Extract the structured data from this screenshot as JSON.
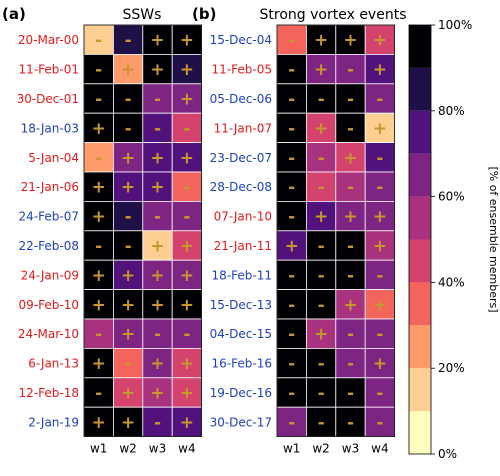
{
  "chart_data": [
    {
      "type": "heatmap",
      "panel_label": "(a)",
      "title": "SSWs",
      "columns": [
        "w1",
        "w2",
        "w3",
        "w4"
      ],
      "rows": [
        {
          "label": "20-Mar-00",
          "color": "red",
          "values": [
            10,
            80,
            100,
            100
          ],
          "signs": [
            "-",
            "-",
            "+",
            "+"
          ]
        },
        {
          "label": "11-Feb-01",
          "color": "red",
          "values": [
            100,
            25,
            100,
            80
          ],
          "signs": [
            "-",
            "+",
            "+",
            "+"
          ]
        },
        {
          "label": "30-Dec-01",
          "color": "red",
          "values": [
            100,
            100,
            65,
            65
          ],
          "signs": [
            "-",
            "-",
            "-",
            "+"
          ]
        },
        {
          "label": "18-Jan-03",
          "color": "blue",
          "values": [
            100,
            100,
            75,
            45
          ],
          "signs": [
            "+",
            "-",
            "-",
            "-"
          ]
        },
        {
          "label": "5-Jan-04",
          "color": "red",
          "values": [
            25,
            65,
            75,
            75
          ],
          "signs": [
            "-",
            "+",
            "+",
            "+"
          ]
        },
        {
          "label": "21-Jan-06",
          "color": "red",
          "values": [
            100,
            75,
            75,
            35
          ],
          "signs": [
            "+",
            "+",
            "+",
            "-"
          ]
        },
        {
          "label": "24-Feb-07",
          "color": "blue",
          "values": [
            100,
            85,
            65,
            65
          ],
          "signs": [
            "+",
            "-",
            "-",
            "-"
          ]
        },
        {
          "label": "22-Feb-08",
          "color": "blue",
          "values": [
            100,
            100,
            10,
            40
          ],
          "signs": [
            "-",
            "-",
            "+",
            "+"
          ]
        },
        {
          "label": "24-Jan-09",
          "color": "red",
          "values": [
            100,
            75,
            65,
            65
          ],
          "signs": [
            "+",
            "+",
            "+",
            "+"
          ]
        },
        {
          "label": "09-Feb-10",
          "color": "red",
          "values": [
            100,
            100,
            100,
            100
          ],
          "signs": [
            "+",
            "+",
            "+",
            "+"
          ]
        },
        {
          "label": "24-Mar-10",
          "color": "red",
          "values": [
            55,
            65,
            65,
            65
          ],
          "signs": [
            "-",
            "+",
            "-",
            "-"
          ]
        },
        {
          "label": "6-Jan-13",
          "color": "red",
          "values": [
            100,
            35,
            65,
            45
          ],
          "signs": [
            "+",
            "-",
            "+",
            "+"
          ]
        },
        {
          "label": "12-Feb-18",
          "color": "red",
          "values": [
            100,
            45,
            55,
            45
          ],
          "signs": [
            "-",
            "+",
            "+",
            "+"
          ]
        },
        {
          "label": "2-Jan-19",
          "color": "blue",
          "values": [
            100,
            100,
            75,
            75
          ],
          "signs": [
            "+",
            "+",
            "-",
            "+"
          ]
        }
      ]
    },
    {
      "type": "heatmap",
      "panel_label": "(b)",
      "title": "Strong vortex events",
      "columns": [
        "w1",
        "w2",
        "w3",
        "w4"
      ],
      "rows": [
        {
          "label": "15-Dec-04",
          "color": "blue",
          "values": [
            35,
            100,
            90,
            45
          ],
          "signs": [
            "-",
            "+",
            "+",
            "+"
          ]
        },
        {
          "label": "11-Feb-05",
          "color": "red",
          "values": [
            100,
            65,
            65,
            75
          ],
          "signs": [
            "-",
            "+",
            "-",
            "+"
          ]
        },
        {
          "label": "05-Dec-06",
          "color": "blue",
          "values": [
            100,
            100,
            100,
            65
          ],
          "signs": [
            "-",
            "-",
            "-",
            "-"
          ]
        },
        {
          "label": "11-Jan-07",
          "color": "red",
          "values": [
            100,
            45,
            100,
            10
          ],
          "signs": [
            "-",
            "+",
            "-",
            "+"
          ]
        },
        {
          "label": "23-Dec-07",
          "color": "blue",
          "values": [
            100,
            55,
            45,
            75
          ],
          "signs": [
            "-",
            "-",
            "+",
            "-"
          ]
        },
        {
          "label": "28-Dec-08",
          "color": "blue",
          "values": [
            100,
            45,
            55,
            65
          ],
          "signs": [
            "-",
            "-",
            "-",
            "-"
          ]
        },
        {
          "label": "07-Jan-10",
          "color": "red",
          "values": [
            100,
            75,
            65,
            65
          ],
          "signs": [
            "-",
            "+",
            "+",
            "+"
          ]
        },
        {
          "label": "21-Jan-11",
          "color": "red",
          "values": [
            75,
            100,
            100,
            55
          ],
          "signs": [
            "+",
            "-",
            "-",
            "+"
          ]
        },
        {
          "label": "18-Feb-11",
          "color": "blue",
          "values": [
            100,
            100,
            100,
            65
          ],
          "signs": [
            "-",
            "-",
            "-",
            "-"
          ]
        },
        {
          "label": "15-Dec-13",
          "color": "blue",
          "values": [
            100,
            100,
            55,
            35
          ],
          "signs": [
            "-",
            "-",
            "+",
            "+"
          ]
        },
        {
          "label": "04-Dec-15",
          "color": "blue",
          "values": [
            100,
            55,
            65,
            65
          ],
          "signs": [
            "-",
            "+",
            "-",
            "-"
          ]
        },
        {
          "label": "16-Feb-16",
          "color": "blue",
          "values": [
            100,
            100,
            65,
            65
          ],
          "signs": [
            "-",
            "-",
            "-",
            "+"
          ]
        },
        {
          "label": "19-Dec-16",
          "color": "blue",
          "values": [
            100,
            100,
            100,
            65
          ],
          "signs": [
            "-",
            "-",
            "-",
            "-"
          ]
        },
        {
          "label": "30-Dec-17",
          "color": "blue",
          "values": [
            65,
            100,
            100,
            65
          ],
          "signs": [
            "-",
            "-",
            "-",
            "-"
          ]
        }
      ]
    }
  ],
  "colorbar": {
    "label": "[% of ensemble members]",
    "ticks": [
      "0%",
      "20%",
      "40%",
      "60%",
      "80%",
      "100%"
    ],
    "range": [
      0,
      100
    ],
    "bins": 10,
    "colors": [
      "#fcfdbf",
      "#fecf92",
      "#fd9b6b",
      "#f3655c",
      "#d3436e",
      "#a8327d",
      "#7e2482",
      "#51127c",
      "#1f1147",
      "#000004"
    ]
  },
  "label_colors": {
    "red": "#e31a1c",
    "blue": "#1f3fbf"
  },
  "sign_color": "#c8962e"
}
